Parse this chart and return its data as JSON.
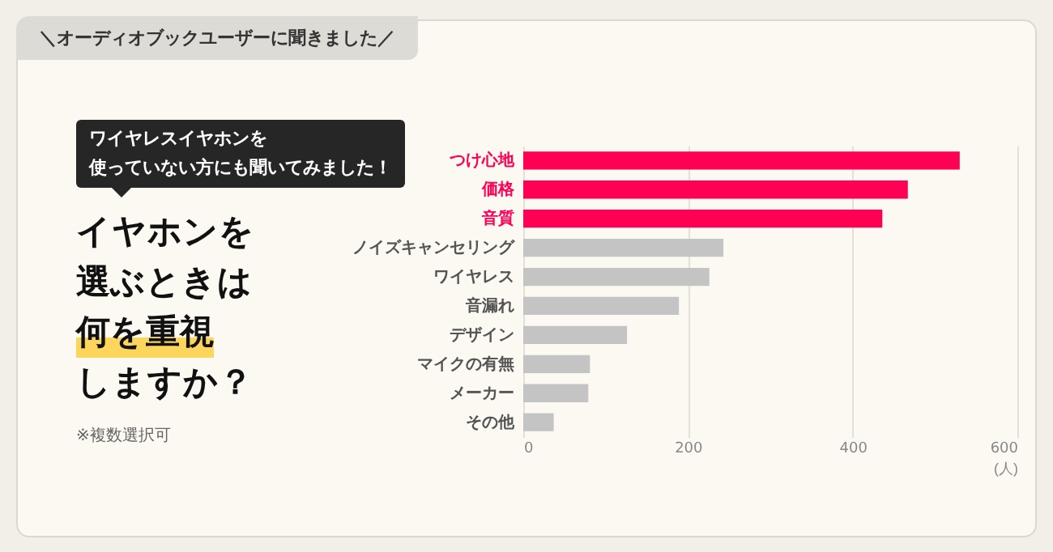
{
  "chart_data": {
    "type": "bar",
    "orientation": "horizontal",
    "title": "イヤホンを選ぶときは何を重視しますか？",
    "subtitle": "ワイヤレスイヤホンを使っていない方にも聞いてみました！",
    "annotations": [
      "＼オーディオブックユーザーに聞きました／",
      "※複数選択可"
    ],
    "xlabel": "(人)",
    "categories": [
      "つけ心地",
      "価格",
      "音質",
      "ノイズキャンセリング",
      "ワイヤレス",
      "音漏れ",
      "デザイン",
      "マイクの有無",
      "メーカー",
      "その他"
    ],
    "values": [
      530,
      467,
      436,
      243,
      226,
      189,
      126,
      81,
      79,
      37
    ],
    "colors": [
      "#ff0055",
      "#ff0055",
      "#ff0055",
      "#c4c4c4",
      "#c4c4c4",
      "#c4c4c4",
      "#c4c4c4",
      "#c4c4c4",
      "#c4c4c4",
      "#c4c4c4"
    ],
    "xlim": [
      0,
      600
    ],
    "xticks": [
      0,
      200,
      400,
      600
    ],
    "grid": "x"
  }
}
